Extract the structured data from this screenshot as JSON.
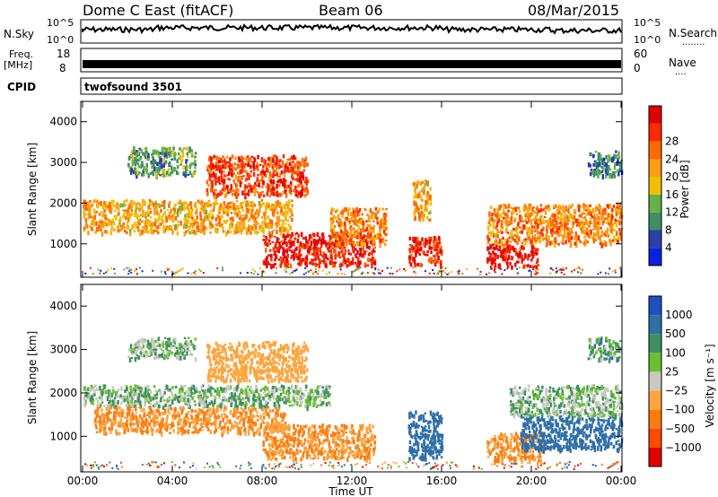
{
  "header": {
    "station": "Dome C East (fitACF)",
    "beam": "Beam 06",
    "date": "08/Mar/2015"
  },
  "side_labels": {
    "nsky": "N.Sky",
    "nsearch": "N.Search",
    "nsearch_dots": "........",
    "freq": "Freq.",
    "freq_unit": "[MHz]",
    "nave": "Nave",
    "nave_dots": "....",
    "cpid": "CPID",
    "cpid_value": "twofsound 3501"
  },
  "strip_ticks": {
    "noise_left": [
      "10^5",
      "10^0"
    ],
    "noise_right": [
      "10^5",
      "10^0"
    ],
    "freq_left": [
      "18",
      "8"
    ],
    "freq_right": [
      "60",
      "0"
    ]
  },
  "colors": {
    "power": [
      "#0a20e0",
      "#2a3fa8",
      "#3f8f63",
      "#66b04a",
      "#f0c000",
      "#ff9d14",
      "#ff6a00",
      "#ff2a00",
      "#e00000"
    ],
    "velocity": [
      "#2050c0",
      "#2f6fa8",
      "#3f8f63",
      "#6abf30",
      "#c8c8c0",
      "#ffa540",
      "#ff7b10",
      "#ff4a00",
      "#e00000"
    ]
  },
  "chart_data": [
    {
      "type": "heatmap",
      "name_printed": "",
      "parameter": "Power",
      "xlabel": "Time UT",
      "ylabel": "Slant Range [km]",
      "xlim": [
        "00:00",
        "24:00"
      ],
      "ylim": [
        180,
        4500
      ],
      "x_ticks": [
        "00:00",
        "04:00",
        "08:00",
        "12:00",
        "16:00",
        "20:00",
        "00:00"
      ],
      "y_ticks": [
        "1000",
        "2000",
        "3000",
        "4000"
      ],
      "colorbar": {
        "label": "Power [dB]",
        "ticks": [
          "4",
          "8",
          "12",
          "16",
          "20",
          "24",
          "28"
        ],
        "range": [
          0,
          30
        ]
      },
      "echo_regions": [
        {
          "t_start": 0.0,
          "t_end": 9.3,
          "range_km": [
            1300,
            2100
          ],
          "value": 18
        },
        {
          "t_start": 2.0,
          "t_end": 5.0,
          "range_km": [
            2700,
            3400
          ],
          "value": 10
        },
        {
          "t_start": 5.5,
          "t_end": 10.0,
          "range_km": [
            2200,
            3200
          ],
          "value": 24
        },
        {
          "t_start": 8.0,
          "t_end": 13.0,
          "range_km": [
            500,
            1300
          ],
          "value": 27
        },
        {
          "t_start": 11.0,
          "t_end": 13.5,
          "range_km": [
            1000,
            1900
          ],
          "value": 20
        },
        {
          "t_start": 14.5,
          "t_end": 16.0,
          "range_km": [
            500,
            1200
          ],
          "value": 26
        },
        {
          "t_start": 14.7,
          "t_end": 15.5,
          "range_km": [
            1600,
            2600
          ],
          "value": 18
        },
        {
          "t_start": 18.0,
          "t_end": 24.0,
          "range_km": [
            1000,
            2000
          ],
          "value": 20
        },
        {
          "t_start": 18.0,
          "t_end": 20.3,
          "range_km": [
            450,
            1000
          ],
          "value": 27
        },
        {
          "t_start": 22.5,
          "t_end": 24.0,
          "range_km": [
            2700,
            3300
          ],
          "value": 8
        }
      ]
    },
    {
      "type": "heatmap",
      "name_printed": "",
      "parameter": "Velocity",
      "xlabel": "Time UT",
      "ylabel": "Slant Range [km]",
      "xlim": [
        "00:00",
        "24:00"
      ],
      "ylim": [
        180,
        4500
      ],
      "x_ticks": [
        "00:00",
        "04:00",
        "08:00",
        "12:00",
        "16:00",
        "20:00",
        "00:00"
      ],
      "y_ticks": [
        "1000",
        "2000",
        "3000",
        "4000"
      ],
      "colorbar": {
        "label": "Velocity [m s⁻¹]",
        "ticks": [
          "1000",
          "500",
          "100",
          "25",
          "−25",
          "−100",
          "−500",
          "−1000"
        ]
      },
      "echo_regions": [
        {
          "t_start": 0.0,
          "t_end": 11.0,
          "range_km": [
            1700,
            2200
          ],
          "value": 0
        },
        {
          "t_start": 0.5,
          "t_end": 9.0,
          "range_km": [
            1100,
            1700
          ],
          "value": -300
        },
        {
          "t_start": 2.0,
          "t_end": 5.0,
          "range_km": [
            2800,
            3300
          ],
          "value": 0
        },
        {
          "t_start": 5.5,
          "t_end": 10.0,
          "range_km": [
            2300,
            3200
          ],
          "value": -200
        },
        {
          "t_start": 8.0,
          "t_end": 13.0,
          "range_km": [
            500,
            1300
          ],
          "value": -300
        },
        {
          "t_start": 14.5,
          "t_end": 16.0,
          "range_km": [
            500,
            1600
          ],
          "value": 300
        },
        {
          "t_start": 18.0,
          "t_end": 20.5,
          "range_km": [
            450,
            1100
          ],
          "value": -300
        },
        {
          "t_start": 19.5,
          "t_end": 24.0,
          "range_km": [
            700,
            1500
          ],
          "value": 300
        },
        {
          "t_start": 19.0,
          "t_end": 24.0,
          "range_km": [
            1500,
            2200
          ],
          "value": 0
        },
        {
          "t_start": 22.5,
          "t_end": 24.0,
          "range_km": [
            2800,
            3300
          ],
          "value": 50
        }
      ]
    }
  ]
}
